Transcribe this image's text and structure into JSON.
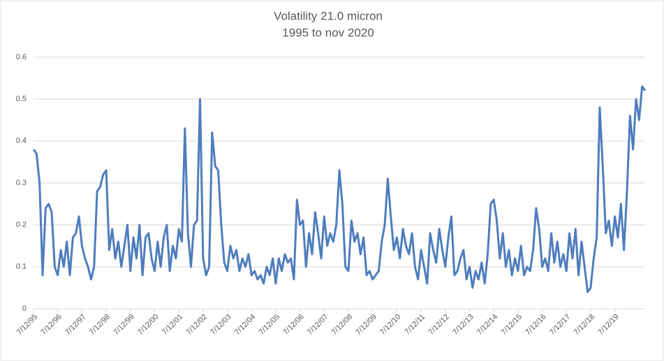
{
  "chart_data": {
    "type": "line",
    "title": "Volatility 21.0 micron",
    "subtitle": "1995 to nov 2020",
    "categories": [
      "7/12/95",
      null,
      null,
      null,
      null,
      null,
      null,
      null,
      "7/12/96",
      null,
      null,
      null,
      null,
      null,
      null,
      null,
      "7/12/97",
      null,
      null,
      null,
      null,
      null,
      null,
      null,
      "7/12/98",
      null,
      null,
      null,
      null,
      null,
      null,
      null,
      "7/12/99",
      null,
      null,
      null,
      null,
      null,
      null,
      null,
      "7/12/00",
      null,
      null,
      null,
      null,
      null,
      null,
      null,
      "7/12/01",
      null,
      null,
      null,
      null,
      null,
      null,
      null,
      "7/12/02",
      null,
      null,
      null,
      null,
      null,
      null,
      null,
      "7/12/03",
      null,
      null,
      null,
      null,
      null,
      null,
      null,
      "7/12/04",
      null,
      null,
      null,
      null,
      null,
      null,
      null,
      "7/12/05",
      null,
      null,
      null,
      null,
      null,
      null,
      null,
      "7/12/06",
      null,
      null,
      null,
      null,
      null,
      null,
      null,
      "7/12/07",
      null,
      null,
      null,
      null,
      null,
      null,
      null,
      "7/12/08",
      null,
      null,
      null,
      null,
      null,
      null,
      null,
      "7/12/09",
      null,
      null,
      null,
      null,
      null,
      null,
      null,
      "7/12/10",
      null,
      null,
      null,
      null,
      null,
      null,
      null,
      "7/12/11",
      null,
      null,
      null,
      null,
      null,
      null,
      null,
      "7/12/12",
      null,
      null,
      null,
      null,
      null,
      null,
      null,
      "7/12/13",
      null,
      null,
      null,
      null,
      null,
      null,
      null,
      "7/12/14",
      null,
      null,
      null,
      null,
      null,
      null,
      null,
      "7/12/15",
      null,
      null,
      null,
      null,
      null,
      null,
      null,
      "7/12/16",
      null,
      null,
      null,
      null,
      null,
      null,
      null,
      "7/12/17",
      null,
      null,
      null,
      null,
      null,
      null,
      null,
      "7/12/18",
      null,
      null,
      null,
      null,
      null,
      null,
      null,
      "7/12/19",
      null,
      null,
      null,
      null,
      null,
      null,
      null,
      null,
      null,
      null
    ],
    "values": [
      0.38,
      0.37,
      0.3,
      0.08,
      0.24,
      0.25,
      0.23,
      0.1,
      0.08,
      0.14,
      0.1,
      0.16,
      0.08,
      0.17,
      0.18,
      0.22,
      0.15,
      0.12,
      0.1,
      0.07,
      0.1,
      0.28,
      0.29,
      0.32,
      0.33,
      0.14,
      0.19,
      0.12,
      0.16,
      0.1,
      0.15,
      0.2,
      0.09,
      0.17,
      0.12,
      0.2,
      0.08,
      0.17,
      0.18,
      0.12,
      0.09,
      0.16,
      0.1,
      0.17,
      0.2,
      0.09,
      0.15,
      0.12,
      0.19,
      0.16,
      0.43,
      0.18,
      0.1,
      0.2,
      0.21,
      0.5,
      0.12,
      0.08,
      0.1,
      0.42,
      0.34,
      0.33,
      0.2,
      0.11,
      0.09,
      0.15,
      0.12,
      0.14,
      0.09,
      0.12,
      0.1,
      0.13,
      0.08,
      0.09,
      0.07,
      0.08,
      0.06,
      0.1,
      0.08,
      0.12,
      0.06,
      0.12,
      0.09,
      0.13,
      0.11,
      0.12,
      0.07,
      0.26,
      0.2,
      0.21,
      0.1,
      0.18,
      0.13,
      0.23,
      0.18,
      0.12,
      0.22,
      0.15,
      0.18,
      0.16,
      0.2,
      0.33,
      0.25,
      0.1,
      0.09,
      0.21,
      0.16,
      0.18,
      0.13,
      0.17,
      0.08,
      0.09,
      0.07,
      0.08,
      0.09,
      0.16,
      0.2,
      0.31,
      0.22,
      0.14,
      0.17,
      0.12,
      0.19,
      0.15,
      0.13,
      0.18,
      0.1,
      0.07,
      0.14,
      0.1,
      0.06,
      0.18,
      0.14,
      0.11,
      0.19,
      0.14,
      0.1,
      0.17,
      0.22,
      0.08,
      0.09,
      0.12,
      0.14,
      0.07,
      0.1,
      0.05,
      0.09,
      0.07,
      0.11,
      0.06,
      0.13,
      0.25,
      0.26,
      0.21,
      0.12,
      0.18,
      0.1,
      0.14,
      0.08,
      0.12,
      0.09,
      0.15,
      0.08,
      0.1,
      0.09,
      0.14,
      0.24,
      0.19,
      0.1,
      0.12,
      0.09,
      0.18,
      0.11,
      0.16,
      0.1,
      0.13,
      0.09,
      0.18,
      0.12,
      0.19,
      0.08,
      0.16,
      0.1,
      0.04,
      0.05,
      0.12,
      0.17,
      0.48,
      0.34,
      0.18,
      0.21,
      0.15,
      0.22,
      0.17,
      0.25,
      0.14,
      0.28,
      0.46,
      0.38,
      0.5,
      0.45,
      0.53,
      0.52
    ],
    "color": "#4f7dbd",
    "ylim": [
      0,
      0.6
    ],
    "yticks": [
      0,
      0.1,
      0.2,
      0.3,
      0.4,
      0.5,
      0.6
    ],
    "grid": true
  }
}
